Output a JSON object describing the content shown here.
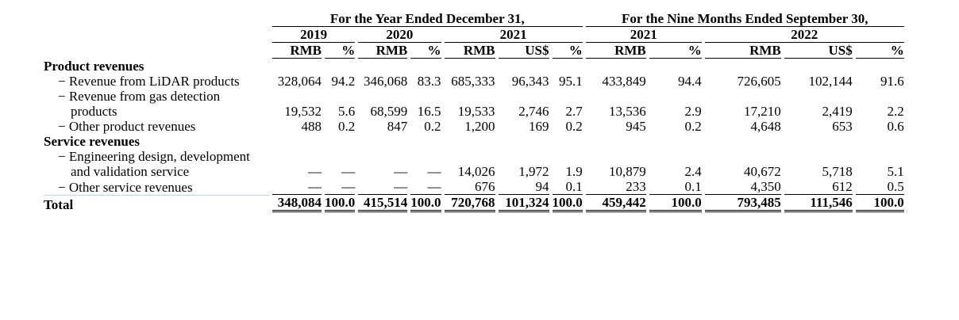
{
  "table": {
    "header": {
      "groups": [
        "For the Year Ended December 31,",
        "For the Nine Months Ended September 30,"
      ],
      "years": [
        "2019",
        "2020",
        "2021",
        "2021",
        "2022"
      ],
      "units": [
        "RMB",
        "%",
        "RMB",
        "%",
        "RMB",
        "US$",
        "%",
        "RMB",
        "%",
        "RMB",
        "US$",
        "%"
      ]
    },
    "rows": [
      {
        "label": "Product revenues"
      },
      {
        "label": "− Revenue from LiDAR products",
        "cells": [
          "328,064",
          "94.2",
          "346,068",
          "83.3",
          "685,333",
          "96,343",
          "95.1",
          "433,849",
          "94.4",
          "726,605",
          "102,144",
          "91.6"
        ]
      },
      {
        "label": "− Revenue from gas detection products",
        "cells": [
          "19,532",
          "5.6",
          "68,599",
          "16.5",
          "19,533",
          "2,746",
          "2.7",
          "13,536",
          "2.9",
          "17,210",
          "2,419",
          "2.2"
        ]
      },
      {
        "label": "− Other product revenues",
        "cells": [
          "488",
          "0.2",
          "847",
          "0.2",
          "1,200",
          "169",
          "0.2",
          "945",
          "0.2",
          "4,648",
          "653",
          "0.6"
        ]
      },
      {
        "label": "Service revenues"
      },
      {
        "label": "− Engineering design, development and validation service",
        "cells": [
          "—",
          "—",
          "—",
          "—",
          "14,026",
          "1,972",
          "1.9",
          "10,879",
          "2.4",
          "40,672",
          "5,718",
          "5.1"
        ]
      },
      {
        "label": "− Other service revenues",
        "cells": [
          "—",
          "—",
          "—",
          "—",
          "676",
          "94",
          "0.1",
          "233",
          "0.1",
          "4,350",
          "612",
          "0.5"
        ]
      },
      {
        "label": "Total",
        "cells": [
          "348,084",
          "100.0",
          "415,514",
          "100.0",
          "720,768",
          "101,324",
          "100.0",
          "459,442",
          "100.0",
          "793,485",
          "111,546",
          "100.0"
        ]
      }
    ]
  }
}
